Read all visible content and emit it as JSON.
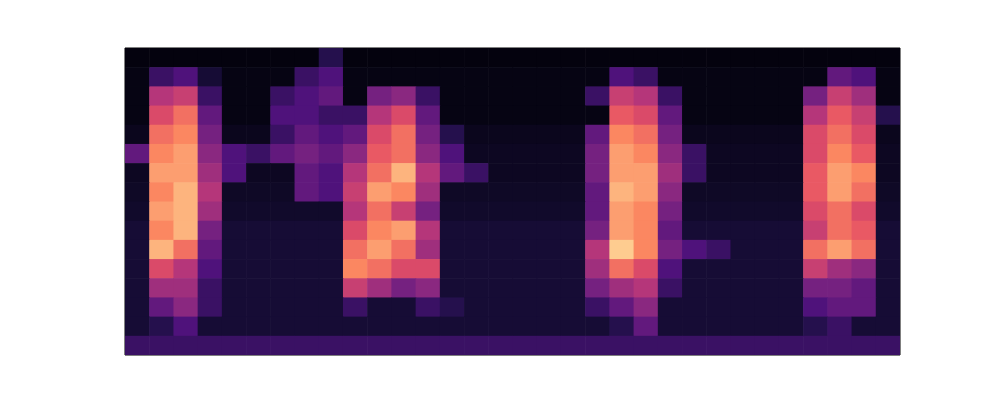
{
  "chart_data": {
    "type": "heatmap",
    "xlim": [
      0,
      32
    ],
    "ylim": [
      0,
      16
    ],
    "zlim": [
      0,
      1
    ],
    "tick_labels": false,
    "cells": [
      [
        0.02,
        0.02,
        0.02,
        0.02,
        0.02,
        0.02,
        0.02,
        0.02,
        0.15,
        0.02,
        0.02,
        0.02,
        0.02,
        0.02,
        0.02,
        0.02,
        0.02,
        0.02,
        0.02,
        0.02,
        0.02,
        0.02,
        0.02,
        0.02,
        0.02,
        0.02,
        0.02,
        0.02,
        0.02,
        0.02,
        0.02,
        0.02
      ],
      [
        0.03,
        0.2,
        0.25,
        0.1,
        0.03,
        0.03,
        0.03,
        0.2,
        0.25,
        0.03,
        0.03,
        0.03,
        0.03,
        0.03,
        0.03,
        0.03,
        0.03,
        0.03,
        0.03,
        0.03,
        0.25,
        0.2,
        0.03,
        0.03,
        0.03,
        0.03,
        0.03,
        0.03,
        0.03,
        0.3,
        0.25,
        0.03
      ],
      [
        0.03,
        0.5,
        0.55,
        0.2,
        0.03,
        0.03,
        0.2,
        0.25,
        0.3,
        0.03,
        0.35,
        0.4,
        0.2,
        0.03,
        0.03,
        0.03,
        0.03,
        0.03,
        0.03,
        0.2,
        0.55,
        0.5,
        0.2,
        0.03,
        0.03,
        0.03,
        0.03,
        0.03,
        0.35,
        0.55,
        0.45,
        0.03
      ],
      [
        0.03,
        0.6,
        0.7,
        0.3,
        0.03,
        0.03,
        0.25,
        0.25,
        0.2,
        0.2,
        0.5,
        0.6,
        0.3,
        0.03,
        0.03,
        0.03,
        0.03,
        0.03,
        0.03,
        0.03,
        0.65,
        0.6,
        0.3,
        0.03,
        0.03,
        0.03,
        0.03,
        0.03,
        0.5,
        0.65,
        0.55,
        0.15
      ],
      [
        0.05,
        0.7,
        0.75,
        0.35,
        0.05,
        0.05,
        0.2,
        0.3,
        0.25,
        0.3,
        0.6,
        0.7,
        0.35,
        0.15,
        0.05,
        0.05,
        0.05,
        0.05,
        0.05,
        0.3,
        0.75,
        0.7,
        0.35,
        0.05,
        0.05,
        0.05,
        0.05,
        0.05,
        0.6,
        0.7,
        0.6,
        0.05
      ],
      [
        0.3,
        0.75,
        0.8,
        0.4,
        0.25,
        0.2,
        0.3,
        0.35,
        0.3,
        0.4,
        0.65,
        0.7,
        0.4,
        0.25,
        0.06,
        0.06,
        0.06,
        0.06,
        0.06,
        0.35,
        0.8,
        0.75,
        0.4,
        0.2,
        0.06,
        0.06,
        0.06,
        0.06,
        0.6,
        0.75,
        0.65,
        0.06
      ],
      [
        0.06,
        0.8,
        0.8,
        0.45,
        0.25,
        0.06,
        0.06,
        0.3,
        0.25,
        0.5,
        0.7,
        0.85,
        0.5,
        0.3,
        0.2,
        0.06,
        0.06,
        0.06,
        0.06,
        0.35,
        0.8,
        0.8,
        0.45,
        0.2,
        0.06,
        0.06,
        0.06,
        0.06,
        0.65,
        0.8,
        0.75,
        0.06
      ],
      [
        0.07,
        0.75,
        0.85,
        0.5,
        0.07,
        0.07,
        0.07,
        0.3,
        0.25,
        0.55,
        0.8,
        0.75,
        0.45,
        0.07,
        0.07,
        0.07,
        0.07,
        0.07,
        0.07,
        0.3,
        0.85,
        0.8,
        0.4,
        0.07,
        0.07,
        0.07,
        0.07,
        0.07,
        0.65,
        0.8,
        0.7,
        0.07
      ],
      [
        0.08,
        0.8,
        0.85,
        0.45,
        0.08,
        0.08,
        0.08,
        0.08,
        0.08,
        0.5,
        0.7,
        0.55,
        0.35,
        0.08,
        0.08,
        0.08,
        0.08,
        0.08,
        0.08,
        0.3,
        0.8,
        0.75,
        0.35,
        0.08,
        0.08,
        0.08,
        0.08,
        0.08,
        0.6,
        0.7,
        0.6,
        0.08
      ],
      [
        0.1,
        0.75,
        0.85,
        0.35,
        0.1,
        0.1,
        0.1,
        0.1,
        0.1,
        0.6,
        0.75,
        0.8,
        0.5,
        0.1,
        0.1,
        0.1,
        0.1,
        0.1,
        0.1,
        0.35,
        0.8,
        0.75,
        0.3,
        0.1,
        0.1,
        0.1,
        0.1,
        0.1,
        0.55,
        0.7,
        0.65,
        0.1
      ],
      [
        0.1,
        0.85,
        0.7,
        0.3,
        0.1,
        0.1,
        0.1,
        0.1,
        0.1,
        0.7,
        0.8,
        0.7,
        0.45,
        0.1,
        0.1,
        0.1,
        0.1,
        0.1,
        0.1,
        0.5,
        0.9,
        0.75,
        0.35,
        0.25,
        0.2,
        0.1,
        0.1,
        0.1,
        0.7,
        0.8,
        0.7,
        0.1
      ],
      [
        0.1,
        0.6,
        0.5,
        0.25,
        0.1,
        0.1,
        0.1,
        0.1,
        0.1,
        0.75,
        0.7,
        0.6,
        0.6,
        0.1,
        0.1,
        0.1,
        0.1,
        0.1,
        0.1,
        0.45,
        0.7,
        0.6,
        0.25,
        0.1,
        0.1,
        0.1,
        0.1,
        0.1,
        0.55,
        0.45,
        0.4,
        0.1
      ],
      [
        0.1,
        0.45,
        0.45,
        0.2,
        0.1,
        0.1,
        0.1,
        0.1,
        0.1,
        0.55,
        0.45,
        0.35,
        0.4,
        0.1,
        0.1,
        0.1,
        0.1,
        0.1,
        0.1,
        0.35,
        0.45,
        0.5,
        0.2,
        0.1,
        0.1,
        0.1,
        0.1,
        0.1,
        0.35,
        0.35,
        0.3,
        0.1
      ],
      [
        0.1,
        0.3,
        0.4,
        0.2,
        0.1,
        0.1,
        0.1,
        0.1,
        0.1,
        0.2,
        0.1,
        0.1,
        0.2,
        0.15,
        0.1,
        0.1,
        0.1,
        0.1,
        0.1,
        0.2,
        0.3,
        0.4,
        0.1,
        0.1,
        0.1,
        0.1,
        0.1,
        0.1,
        0.25,
        0.3,
        0.3,
        0.1
      ],
      [
        0.1,
        0.15,
        0.25,
        0.1,
        0.1,
        0.1,
        0.1,
        0.1,
        0.1,
        0.1,
        0.1,
        0.1,
        0.1,
        0.1,
        0.1,
        0.1,
        0.1,
        0.1,
        0.1,
        0.1,
        0.15,
        0.3,
        0.1,
        0.1,
        0.1,
        0.1,
        0.1,
        0.1,
        0.15,
        0.2,
        0.1,
        0.1
      ],
      [
        0.2,
        0.2,
        0.2,
        0.2,
        0.2,
        0.2,
        0.2,
        0.2,
        0.2,
        0.2,
        0.2,
        0.2,
        0.2,
        0.2,
        0.2,
        0.2,
        0.2,
        0.2,
        0.2,
        0.2,
        0.2,
        0.2,
        0.2,
        0.2,
        0.2,
        0.2,
        0.2,
        0.2,
        0.2,
        0.2,
        0.2,
        0.2
      ]
    ]
  }
}
